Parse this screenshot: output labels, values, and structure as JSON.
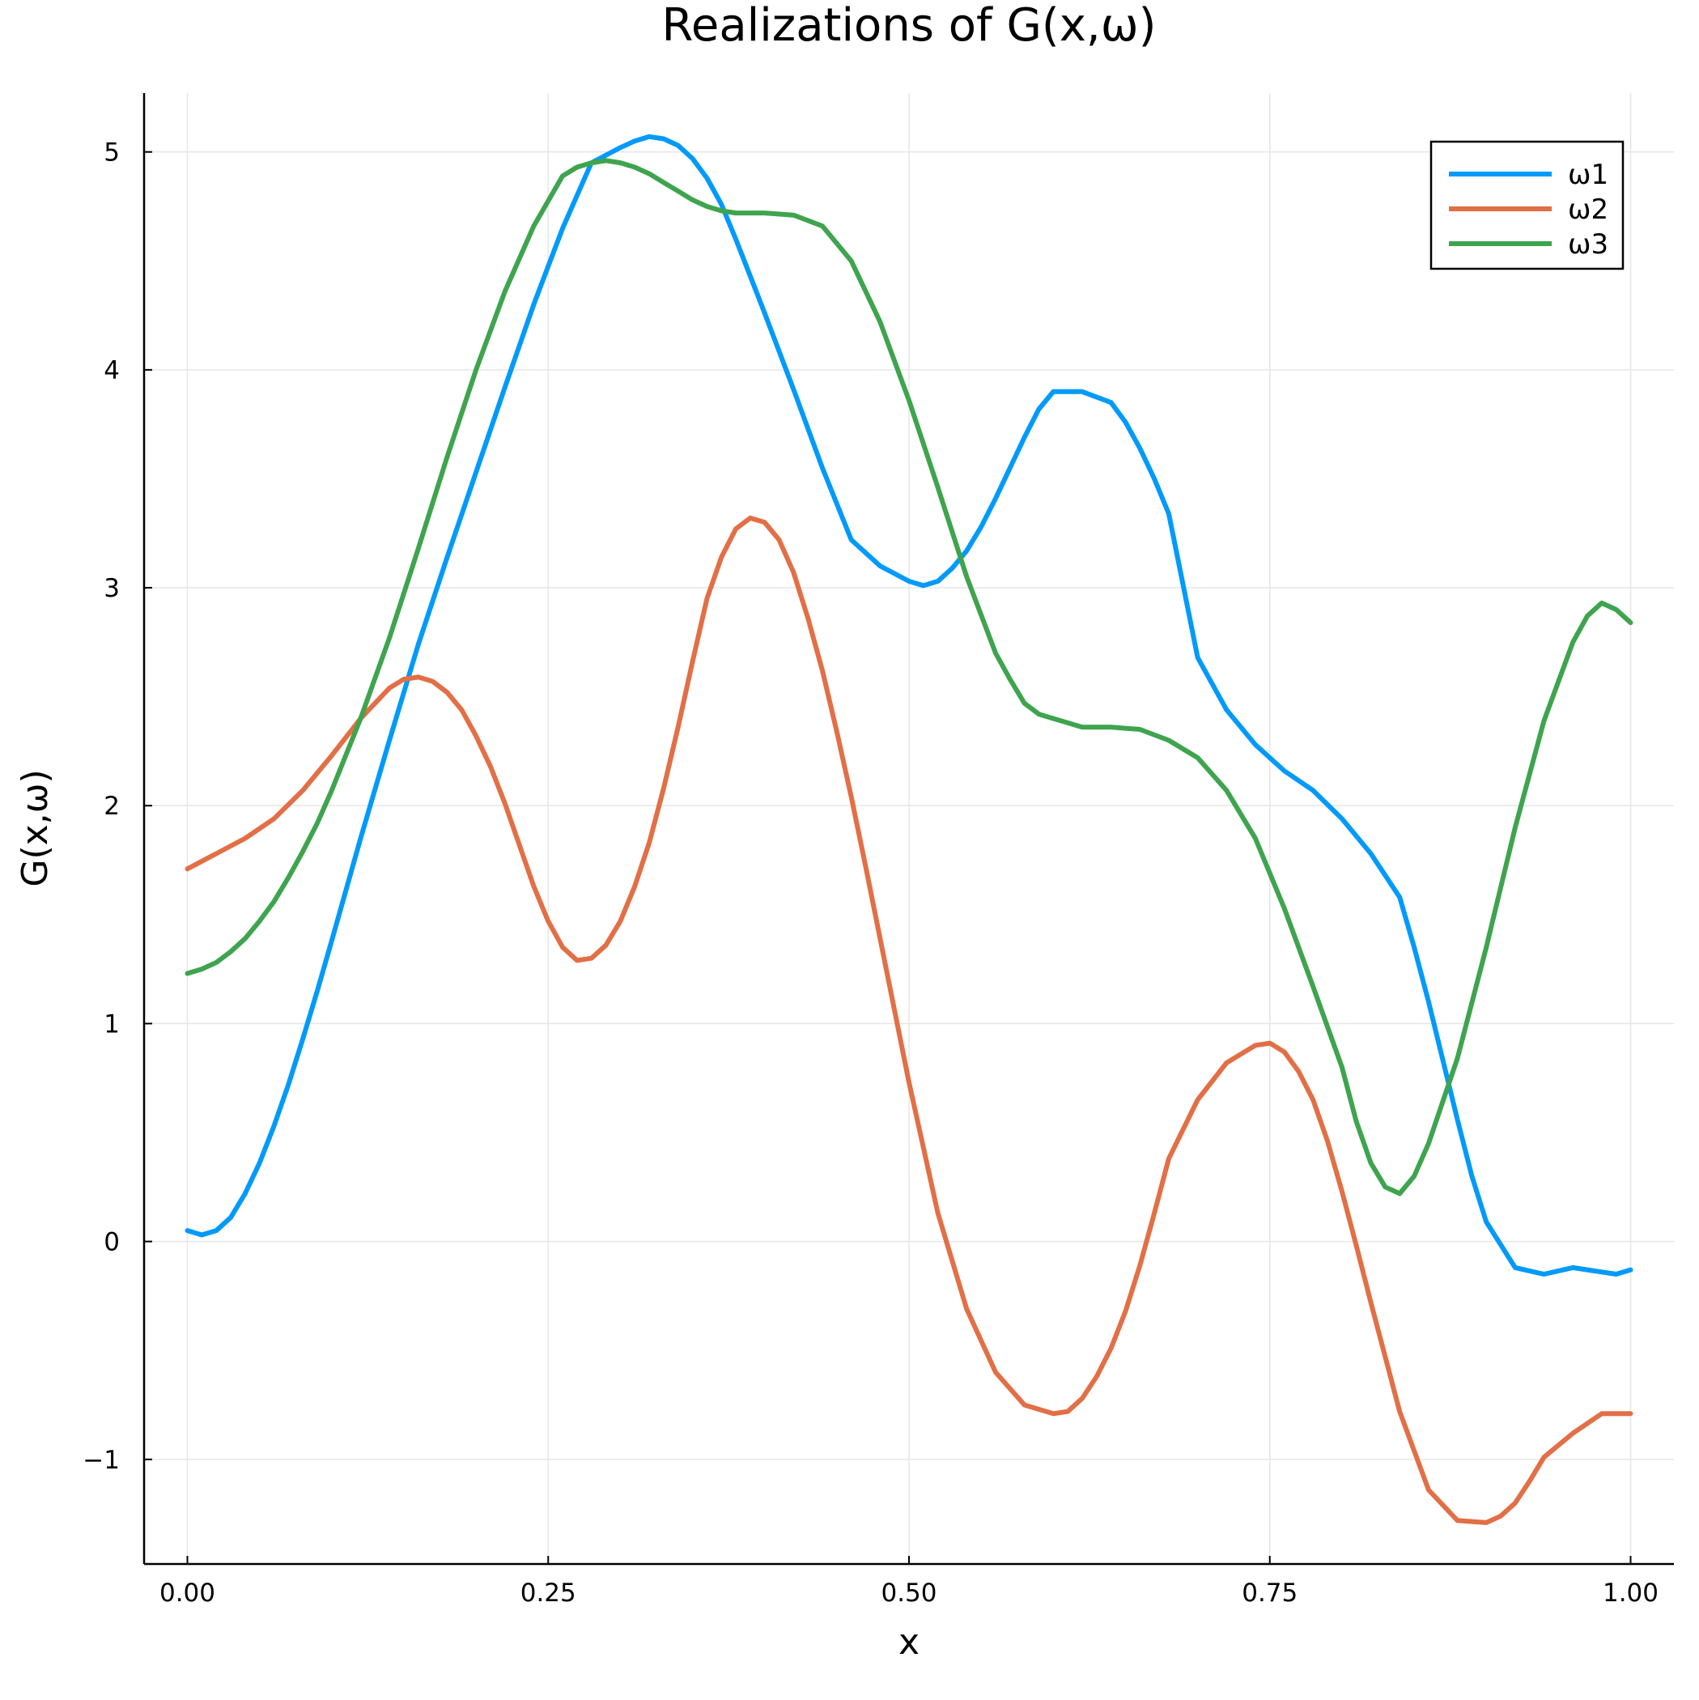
{
  "chart_data": {
    "type": "line",
    "title": "Realizations of G(x,ω)",
    "xlabel": "x",
    "ylabel": "G(x,ω)",
    "xlim": [
      -0.03,
      1.03
    ],
    "ylim": [
      -1.48,
      5.27
    ],
    "xticks": [
      0.0,
      0.25,
      0.5,
      0.75,
      1.0
    ],
    "xtick_labels": [
      "0.00",
      "0.25",
      "0.50",
      "0.75",
      "1.00"
    ],
    "yticks": [
      -1,
      0,
      1,
      2,
      3,
      4,
      5
    ],
    "ytick_labels": [
      "−1",
      "0",
      "1",
      "2",
      "3",
      "4",
      "5"
    ],
    "grid": true,
    "legend_position": "top-right",
    "series": [
      {
        "name": "ω1",
        "color": "#009AFA",
        "x": [
          0.0,
          0.01,
          0.02,
          0.03,
          0.04,
          0.05,
          0.06,
          0.07,
          0.08,
          0.09,
          0.1,
          0.12,
          0.14,
          0.16,
          0.18,
          0.2,
          0.22,
          0.24,
          0.26,
          0.28,
          0.3,
          0.31,
          0.32,
          0.33,
          0.34,
          0.35,
          0.36,
          0.37,
          0.38,
          0.39,
          0.4,
          0.42,
          0.44,
          0.46,
          0.48,
          0.5,
          0.51,
          0.52,
          0.53,
          0.54,
          0.55,
          0.56,
          0.57,
          0.58,
          0.59,
          0.6,
          0.62,
          0.64,
          0.65,
          0.66,
          0.67,
          0.68,
          0.69,
          0.7,
          0.72,
          0.74,
          0.76,
          0.78,
          0.8,
          0.82,
          0.84,
          0.85,
          0.86,
          0.87,
          0.88,
          0.89,
          0.9,
          0.92,
          0.94,
          0.96,
          0.97,
          0.98,
          0.99,
          1.0
        ],
        "y": [
          0.05,
          0.03,
          0.05,
          0.11,
          0.22,
          0.36,
          0.53,
          0.72,
          0.93,
          1.15,
          1.38,
          1.85,
          2.3,
          2.74,
          3.14,
          3.53,
          3.92,
          4.3,
          4.65,
          4.95,
          5.02,
          5.05,
          5.07,
          5.06,
          5.03,
          4.97,
          4.88,
          4.76,
          4.6,
          4.43,
          4.26,
          3.91,
          3.55,
          3.22,
          3.1,
          3.03,
          3.01,
          3.03,
          3.09,
          3.17,
          3.28,
          3.41,
          3.55,
          3.69,
          3.82,
          3.9,
          3.9,
          3.85,
          3.76,
          3.64,
          3.5,
          3.34,
          3.01,
          2.68,
          2.44,
          2.28,
          2.16,
          2.07,
          1.94,
          1.78,
          1.58,
          1.35,
          1.1,
          0.83,
          0.56,
          0.3,
          0.09,
          -0.12,
          -0.15,
          -0.12,
          -0.13,
          -0.14,
          -0.15,
          -0.13
        ]
      },
      {
        "name": "ω2",
        "color": "#E26F46",
        "x": [
          0.0,
          0.02,
          0.04,
          0.06,
          0.08,
          0.1,
          0.12,
          0.14,
          0.15,
          0.16,
          0.17,
          0.18,
          0.19,
          0.2,
          0.21,
          0.22,
          0.23,
          0.24,
          0.25,
          0.26,
          0.27,
          0.28,
          0.29,
          0.3,
          0.31,
          0.32,
          0.33,
          0.34,
          0.35,
          0.36,
          0.37,
          0.38,
          0.39,
          0.4,
          0.41,
          0.42,
          0.43,
          0.44,
          0.45,
          0.46,
          0.47,
          0.48,
          0.5,
          0.52,
          0.54,
          0.56,
          0.58,
          0.6,
          0.61,
          0.62,
          0.63,
          0.64,
          0.65,
          0.66,
          0.67,
          0.68,
          0.7,
          0.72,
          0.74,
          0.75,
          0.76,
          0.77,
          0.78,
          0.79,
          0.8,
          0.81,
          0.82,
          0.83,
          0.84,
          0.86,
          0.88,
          0.9,
          0.91,
          0.92,
          0.93,
          0.94,
          0.96,
          0.98,
          1.0
        ],
        "y": [
          1.71,
          1.78,
          1.85,
          1.94,
          2.07,
          2.23,
          2.4,
          2.54,
          2.58,
          2.59,
          2.57,
          2.52,
          2.44,
          2.32,
          2.18,
          2.01,
          1.82,
          1.63,
          1.47,
          1.35,
          1.29,
          1.3,
          1.36,
          1.47,
          1.63,
          1.83,
          2.08,
          2.36,
          2.66,
          2.95,
          3.14,
          3.27,
          3.32,
          3.3,
          3.22,
          3.07,
          2.86,
          2.62,
          2.34,
          2.04,
          1.72,
          1.39,
          0.73,
          0.13,
          -0.31,
          -0.6,
          -0.75,
          -0.79,
          -0.78,
          -0.72,
          -0.62,
          -0.49,
          -0.32,
          -0.11,
          0.13,
          0.38,
          0.65,
          0.82,
          0.9,
          0.91,
          0.87,
          0.78,
          0.65,
          0.46,
          0.23,
          -0.02,
          -0.28,
          -0.53,
          -0.78,
          -1.14,
          -1.28,
          -1.29,
          -1.26,
          -1.2,
          -1.1,
          -0.99,
          -0.88,
          -0.79,
          -0.79
        ]
      },
      {
        "name": "ω3",
        "color": "#3EA44E",
        "x": [
          0.0,
          0.01,
          0.02,
          0.03,
          0.04,
          0.05,
          0.06,
          0.07,
          0.08,
          0.09,
          0.1,
          0.12,
          0.14,
          0.16,
          0.18,
          0.2,
          0.22,
          0.24,
          0.26,
          0.27,
          0.28,
          0.29,
          0.3,
          0.31,
          0.32,
          0.33,
          0.34,
          0.35,
          0.36,
          0.37,
          0.38,
          0.39,
          0.4,
          0.42,
          0.44,
          0.46,
          0.48,
          0.5,
          0.52,
          0.54,
          0.56,
          0.57,
          0.58,
          0.59,
          0.6,
          0.61,
          0.62,
          0.64,
          0.66,
          0.68,
          0.7,
          0.72,
          0.74,
          0.76,
          0.78,
          0.8,
          0.81,
          0.82,
          0.83,
          0.84,
          0.85,
          0.86,
          0.88,
          0.9,
          0.92,
          0.94,
          0.96,
          0.97,
          0.98,
          0.99,
          1.0
        ],
        "y": [
          1.23,
          1.25,
          1.28,
          1.33,
          1.39,
          1.47,
          1.56,
          1.67,
          1.79,
          1.92,
          2.07,
          2.4,
          2.77,
          3.18,
          3.6,
          4.0,
          4.36,
          4.66,
          4.89,
          4.93,
          4.95,
          4.96,
          4.95,
          4.93,
          4.9,
          4.86,
          4.82,
          4.78,
          4.75,
          4.73,
          4.72,
          4.72,
          4.72,
          4.71,
          4.66,
          4.5,
          4.22,
          3.86,
          3.46,
          3.05,
          2.7,
          2.58,
          2.47,
          2.42,
          2.4,
          2.38,
          2.36,
          2.36,
          2.35,
          2.3,
          2.22,
          2.07,
          1.85,
          1.53,
          1.17,
          0.8,
          0.55,
          0.36,
          0.25,
          0.22,
          0.3,
          0.45,
          0.84,
          1.35,
          1.9,
          2.39,
          2.75,
          2.87,
          2.93,
          2.9,
          2.84
        ]
      }
    ]
  }
}
